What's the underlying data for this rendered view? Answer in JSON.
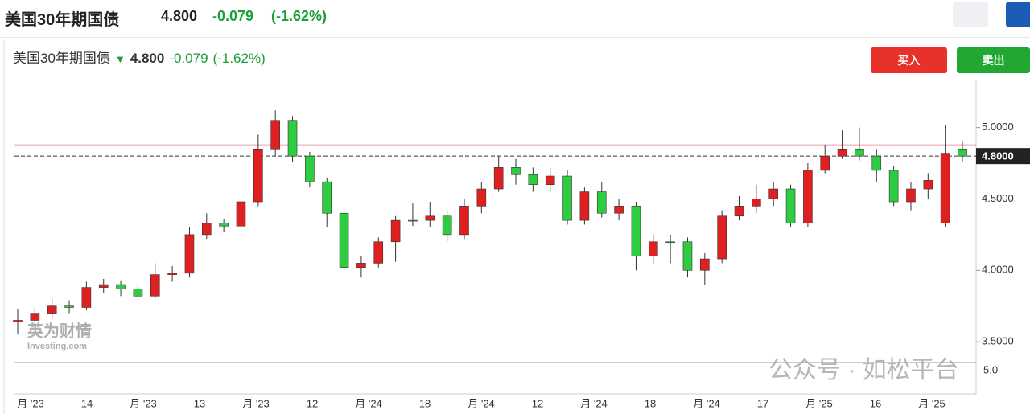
{
  "header": {
    "title": "美国30年期国债",
    "price": "4.800",
    "change": "-0.079",
    "change_pct": "(-1.62%)"
  },
  "buttons": {
    "buy": "买入",
    "sell": "卖出"
  },
  "watermarks": {
    "logo_cn": "英为财情",
    "logo_en": "Investing.com",
    "wechat": "公众号 · 如松平台"
  },
  "chart_data": {
    "type": "candlestick",
    "title": "美国30年期国债",
    "price": "4.800",
    "change": "-0.079",
    "change_pct": "(-1.62%)",
    "up_color": "#e02020",
    "down_color": "#2ecc40",
    "open": [
      3.64,
      3.65,
      3.7,
      3.75,
      3.74,
      3.88,
      3.9,
      3.87,
      3.82,
      3.97,
      3.98,
      4.25,
      4.33,
      4.31,
      4.48,
      4.85,
      5.05,
      4.8,
      4.62,
      4.4,
      4.02,
      4.05,
      4.2,
      4.35,
      4.35,
      4.38,
      4.25,
      4.45,
      4.57,
      4.72,
      4.67,
      4.6,
      4.66,
      4.35,
      4.55,
      4.4,
      4.45,
      4.1,
      4.2,
      4.2,
      4.0,
      4.08,
      4.38,
      4.45,
      4.5,
      4.57,
      4.33,
      4.7,
      4.8,
      4.85,
      4.8,
      4.7,
      4.48,
      4.57,
      4.33,
      4.85
    ],
    "high": [
      3.73,
      3.74,
      3.8,
      3.79,
      3.92,
      3.94,
      3.93,
      3.91,
      4.05,
      4.03,
      4.3,
      4.4,
      4.36,
      4.53,
      4.95,
      5.12,
      5.08,
      4.83,
      4.65,
      4.43,
      4.1,
      4.23,
      4.38,
      4.47,
      4.48,
      4.42,
      4.5,
      4.62,
      4.8,
      4.78,
      4.72,
      4.72,
      4.7,
      4.58,
      4.62,
      4.5,
      4.48,
      4.25,
      4.25,
      4.23,
      4.12,
      4.42,
      4.52,
      4.6,
      4.62,
      4.6,
      4.75,
      4.88,
      4.98,
      5.0,
      4.85,
      4.73,
      4.62,
      4.68,
      5.02,
      4.9
    ],
    "low": [
      3.55,
      3.6,
      3.66,
      3.7,
      3.72,
      3.84,
      3.82,
      3.79,
      3.8,
      3.92,
      3.95,
      4.22,
      4.27,
      4.28,
      4.45,
      4.8,
      4.76,
      4.58,
      4.3,
      4.0,
      3.95,
      4.02,
      4.06,
      4.31,
      4.3,
      4.2,
      4.22,
      4.4,
      4.55,
      4.6,
      4.55,
      4.55,
      4.32,
      4.32,
      4.37,
      4.35,
      4.0,
      4.05,
      4.05,
      3.95,
      3.9,
      4.05,
      4.35,
      4.4,
      4.45,
      4.3,
      4.3,
      4.68,
      4.78,
      4.77,
      4.62,
      4.45,
      4.42,
      4.5,
      4.3,
      4.76
    ],
    "close": [
      3.65,
      3.7,
      3.75,
      3.74,
      3.88,
      3.9,
      3.87,
      3.82,
      3.97,
      3.98,
      4.25,
      4.33,
      4.31,
      4.48,
      4.85,
      5.05,
      4.8,
      4.62,
      4.4,
      4.02,
      4.05,
      4.2,
      4.35,
      4.35,
      4.38,
      4.25,
      4.45,
      4.57,
      4.72,
      4.67,
      4.6,
      4.66,
      4.35,
      4.55,
      4.4,
      4.45,
      4.1,
      4.2,
      4.2,
      4.0,
      4.08,
      4.38,
      4.45,
      4.5,
      4.57,
      4.33,
      4.7,
      4.8,
      4.85,
      4.8,
      4.7,
      4.48,
      4.57,
      4.63,
      4.82,
      4.8
    ],
    "ylim": [
      3.36,
      5.33
    ],
    "yticks": [
      {
        "value": 5,
        "label": "5.0000"
      },
      {
        "value": 4.5,
        "label": "4.5000"
      },
      {
        "value": 4,
        "label": "4.0000"
      },
      {
        "value": 3.5,
        "label": "3.5000"
      }
    ],
    "last": {
      "value": 4.8,
      "label": "4.8000"
    },
    "prev_close": 4.879,
    "volume_axis_label": "5.0",
    "xlabels": [
      "月 '23",
      "14",
      "月 '23",
      "13",
      "月 '23",
      "12",
      "月 '24",
      "18",
      "月 '24",
      "12",
      "月 '24",
      "18",
      "月 '24",
      "17",
      "月 '25",
      "16",
      "月 '25"
    ]
  }
}
